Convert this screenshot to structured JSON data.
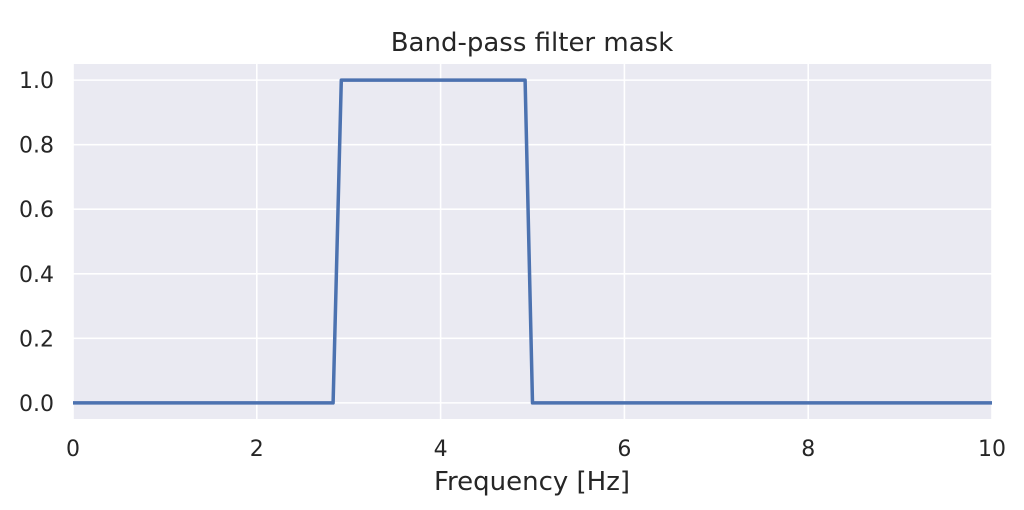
{
  "chart_data": {
    "type": "line",
    "title": "Band-pass filter mask",
    "xlabel": "Frequency [Hz]",
    "ylabel": "",
    "xlim": [
      0,
      10
    ],
    "ylim": [
      -0.05,
      1.05
    ],
    "grid": true,
    "style": {
      "background": "#EAEAF2",
      "grid_color": "#FFFFFF",
      "line_color": "#4C72B0"
    },
    "x_ticks": [
      0,
      2,
      4,
      6,
      8,
      10
    ],
    "x_tick_labels": [
      "0",
      "2",
      "4",
      "6",
      "8",
      "10"
    ],
    "y_ticks": [
      0.0,
      0.2,
      0.4,
      0.6,
      0.8,
      1.0
    ],
    "y_tick_labels": [
      "0.0",
      "0.2",
      "0.4",
      "0.6",
      "0.8",
      "1.0"
    ],
    "series": [
      {
        "x": [
          0,
          2.83,
          2.92,
          4.92,
          5.0,
          10
        ],
        "y": [
          0,
          0,
          1,
          1,
          0,
          0
        ]
      }
    ]
  }
}
